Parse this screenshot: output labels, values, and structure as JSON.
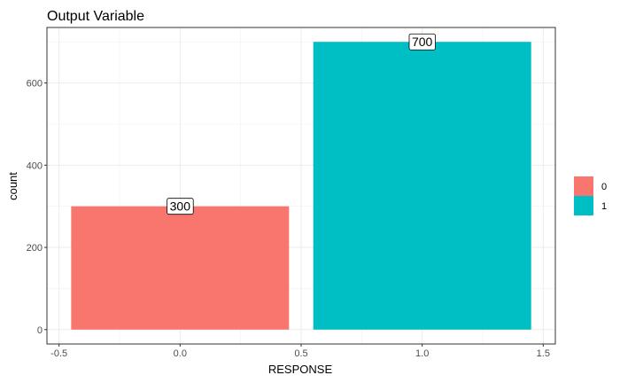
{
  "chart_data": {
    "type": "bar",
    "title": "Output Variable",
    "xlabel": "RESPONSE",
    "ylabel": "count",
    "x": [
      0,
      1
    ],
    "values": [
      300,
      700
    ],
    "data_labels": [
      "300",
      "700"
    ],
    "bar_width": 0.9,
    "xlim": [
      -0.55,
      1.55
    ],
    "ylim": [
      -35,
      735
    ],
    "x_ticks": [
      -0.5,
      0.0,
      0.5,
      1.0,
      1.5
    ],
    "x_tick_labels": [
      "-0.5",
      "0.0",
      "0.5",
      "1.0",
      "1.5"
    ],
    "y_ticks": [
      0,
      200,
      400,
      600
    ],
    "y_tick_labels": [
      "0",
      "200",
      "400",
      "600"
    ],
    "grid": true,
    "legend": {
      "position": "right",
      "entries": [
        {
          "label": "0",
          "color": "#F8766D"
        },
        {
          "label": "1",
          "color": "#00BFC4"
        }
      ]
    },
    "colors": [
      "#F8766D",
      "#00BFC4"
    ]
  }
}
